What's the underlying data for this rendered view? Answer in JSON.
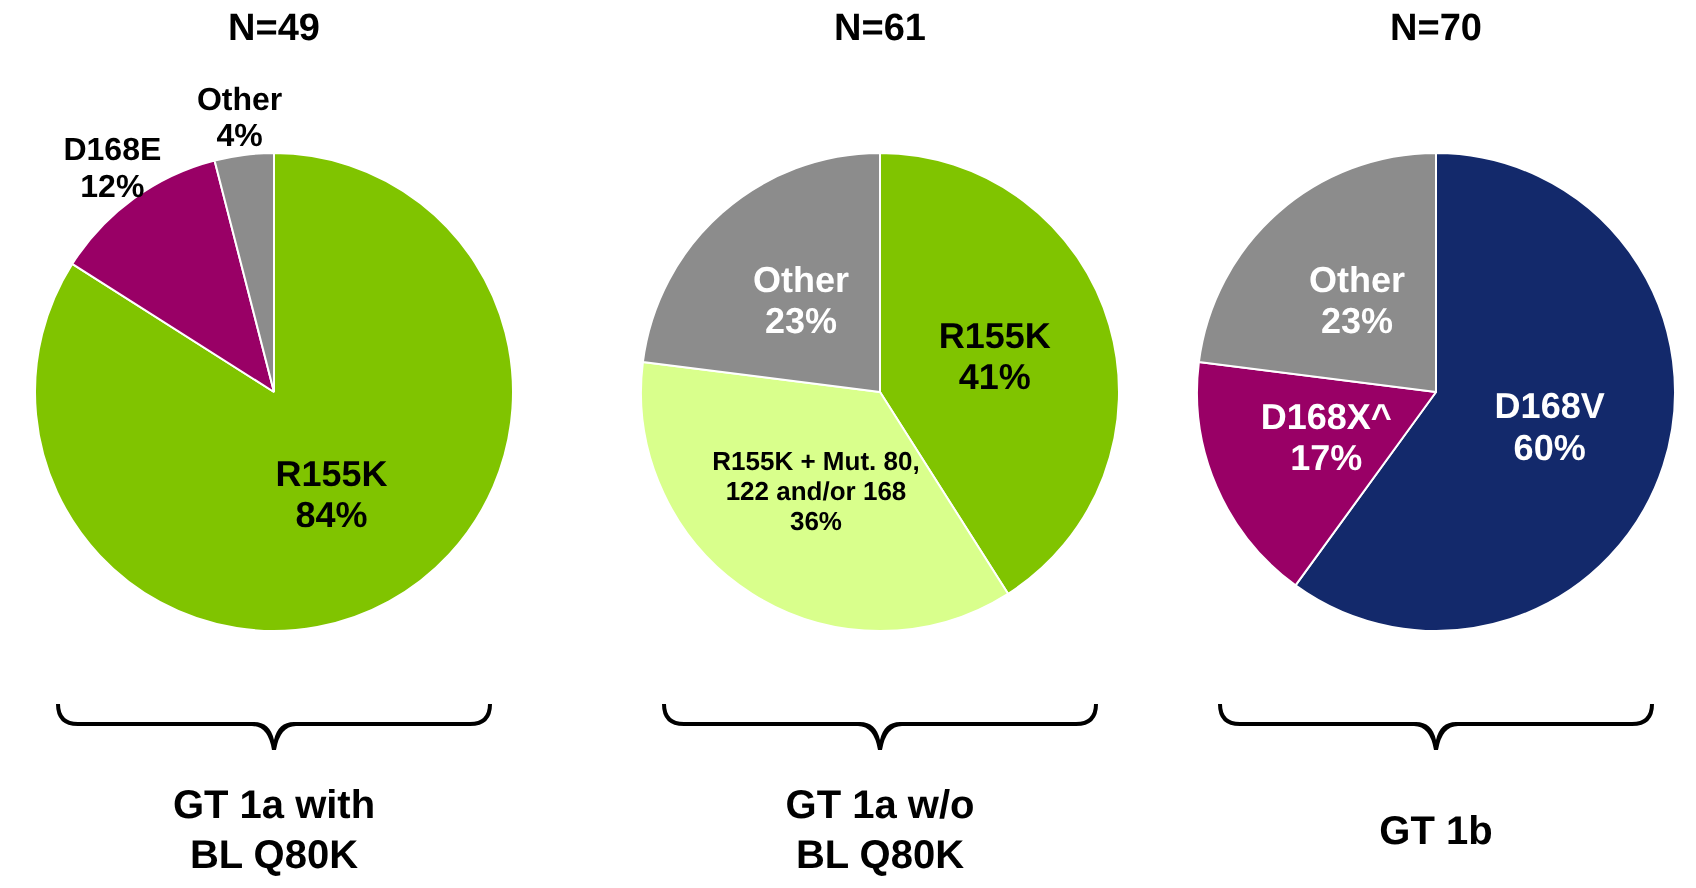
{
  "chart_data": [
    {
      "type": "pie",
      "title": "N=49",
      "xlabel": "GT 1a with BL Q80K",
      "categories": [
        "R155K",
        "D168E",
        "Other"
      ],
      "values": [
        84,
        12,
        4
      ],
      "value_labels": [
        "84%",
        "12%",
        "4%"
      ],
      "colors": [
        "#80c400",
        "#990066",
        "#8c8c8c"
      ],
      "legend": false
    },
    {
      "type": "pie",
      "title": "N=61",
      "xlabel": "GT 1a w/o BL Q80K",
      "categories": [
        "R155K",
        "R155K + Mut. 80, 122 and/or 168",
        "Other"
      ],
      "values": [
        41,
        36,
        23
      ],
      "value_labels": [
        "41%",
        "36%",
        "23%"
      ],
      "colors": [
        "#80c400",
        "#d9ff8c",
        "#8c8c8c"
      ],
      "legend": false
    },
    {
      "type": "pie",
      "title": "N=70",
      "xlabel": "GT 1b",
      "categories": [
        "D168V",
        "D168X^",
        "Other"
      ],
      "values": [
        60,
        17,
        23
      ],
      "value_labels": [
        "60%",
        "17%",
        "23%"
      ],
      "colors": [
        "#13296b",
        "#990066",
        "#8c8c8c"
      ],
      "legend": false
    }
  ]
}
